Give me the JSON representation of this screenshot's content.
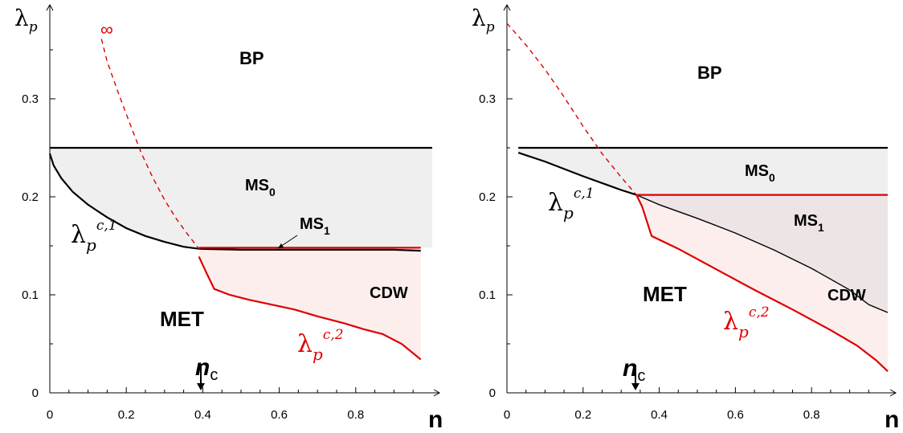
{
  "chart_data": [
    {
      "type": "area",
      "panel": "left",
      "xlabel": "n",
      "ylabel_symbol": "λ",
      "ylabel_sub": "p",
      "xlim": [
        0,
        1.0
      ],
      "ylim": [
        0,
        0.4
      ],
      "x_ticks": [
        0,
        0.2,
        0.4,
        0.6,
        0.8
      ],
      "x_tick_labels": [
        "0",
        "0.2",
        "0.4",
        "0.6",
        "0.8"
      ],
      "y_ticks": [
        0,
        0.1,
        0.2,
        0.3
      ],
      "y_tick_labels": [
        "0",
        "0.1",
        "0.2",
        "0.3"
      ],
      "grid": false,
      "series": [
        {
          "name": "top boundary",
          "color": "#000000",
          "style": "solid",
          "x": [
            0,
            1.0
          ],
          "y": [
            0.25,
            0.25
          ]
        },
        {
          "name": "λp c,1",
          "color": "#000000",
          "style": "solid",
          "x": [
            0,
            0.01,
            0.03,
            0.06,
            0.1,
            0.15,
            0.2,
            0.25,
            0.3,
            0.35,
            0.39
          ],
          "y": [
            0.244,
            0.232,
            0.219,
            0.205,
            0.192,
            0.179,
            0.168,
            0.16,
            0.154,
            0.149,
            0.147
          ]
        },
        {
          "name": "MS1 lower",
          "color": "#000000",
          "style": "solid",
          "x": [
            0.39,
            0.5,
            0.6,
            0.7,
            0.8,
            0.9,
            0.97
          ],
          "y": [
            0.147,
            0.146,
            0.146,
            0.146,
            0.146,
            0.146,
            0.145
          ]
        },
        {
          "name": "MS0/MS1",
          "color": "#dd0000",
          "style": "solid",
          "x": [
            0.39,
            0.97
          ],
          "y": [
            0.148,
            0.148
          ]
        },
        {
          "name": "λp c,2",
          "color": "#dd0000",
          "style": "solid",
          "x": [
            0.39,
            0.41,
            0.43,
            0.47,
            0.52,
            0.58,
            0.64,
            0.7,
            0.77,
            0.82,
            0.87,
            0.92,
            0.97
          ],
          "y": [
            0.139,
            0.122,
            0.106,
            0.1,
            0.095,
            0.09,
            0.085,
            0.078,
            0.071,
            0.065,
            0.06,
            0.05,
            0.034
          ]
        },
        {
          "name": "dashed",
          "color": "#dd0000",
          "style": "dashed",
          "x": [
            0.135,
            0.15,
            0.18,
            0.21,
            0.24,
            0.27,
            0.3,
            0.33,
            0.36,
            0.39
          ],
          "y": [
            0.361,
            0.338,
            0.305,
            0.274,
            0.244,
            0.219,
            0.197,
            0.178,
            0.162,
            0.147
          ]
        }
      ],
      "fill_ms0_color": "#efefef",
      "fill_cdw_color": "#fdeeee",
      "labels": {
        "bp": "BP",
        "ms0": "MS",
        "ms0_sub": "0",
        "ms1": "MS",
        "ms1_sub": "1",
        "cdw": "CDW",
        "met": "MET",
        "infinity": "∞",
        "lam1": "λ",
        "lam1_sub": "p",
        "lam1_sup": "c,1",
        "lam2": "λ",
        "lam2_sub": "p",
        "lam2_sup": "c,2",
        "nc": "n",
        "nc_sub": "c",
        "nc_arrow": "↓"
      },
      "nc_value": 0.39
    },
    {
      "type": "area",
      "panel": "right",
      "xlabel": "n",
      "ylabel_symbol": "λ",
      "ylabel_sub": "p",
      "xlim": [
        0,
        1.0
      ],
      "ylim": [
        0,
        0.4
      ],
      "x_ticks": [
        0,
        0.2,
        0.4,
        0.6,
        0.8
      ],
      "x_tick_labels": [
        "0",
        "0.2",
        "0.4",
        "0.6",
        "0.8"
      ],
      "y_ticks": [
        0,
        0.1,
        0.2,
        0.3
      ],
      "y_tick_labels": [
        "0",
        "0.1",
        "0.2",
        "0.3"
      ],
      "grid": false,
      "series": [
        {
          "name": "top boundary",
          "color": "#000000",
          "style": "solid",
          "x": [
            0.03,
            1.0
          ],
          "y": [
            0.25,
            0.25
          ]
        },
        {
          "name": "λp c,1",
          "color": "#000000",
          "style": "solid",
          "x": [
            0.03,
            0.1,
            0.2,
            0.3,
            0.34
          ],
          "y": [
            0.245,
            0.236,
            0.221,
            0.207,
            0.202
          ]
        },
        {
          "name": "MS1 lower",
          "color": "#000000",
          "style": "solid",
          "x": [
            0.34,
            0.4,
            0.5,
            0.6,
            0.7,
            0.8,
            0.9,
            0.95,
            1.0
          ],
          "y": [
            0.202,
            0.192,
            0.178,
            0.163,
            0.146,
            0.127,
            0.105,
            0.09,
            0.082
          ]
        },
        {
          "name": "MS0/MS1",
          "color": "#dd0000",
          "style": "solid",
          "x": [
            0.34,
            1.0
          ],
          "y": [
            0.202,
            0.202
          ]
        },
        {
          "name": "λp c,2",
          "color": "#dd0000",
          "style": "solid",
          "x": [
            0.34,
            0.355,
            0.37,
            0.38,
            0.45,
            0.55,
            0.65,
            0.75,
            0.85,
            0.92,
            0.97,
            1.0
          ],
          "y": [
            0.202,
            0.19,
            0.172,
            0.16,
            0.147,
            0.126,
            0.105,
            0.085,
            0.064,
            0.048,
            0.033,
            0.022
          ]
        },
        {
          "name": "dashed",
          "color": "#dd0000",
          "style": "dashed",
          "x": [
            0.0,
            0.05,
            0.1,
            0.15,
            0.2,
            0.25,
            0.3,
            0.34
          ],
          "y": [
            0.377,
            0.355,
            0.33,
            0.302,
            0.272,
            0.244,
            0.22,
            0.202
          ]
        }
      ],
      "fill_ms0_color": "#efefef",
      "fill_ms1_color": "#ede5e5",
      "fill_cdw_color": "#fdeeee",
      "labels": {
        "bp": "BP",
        "ms0": "MS",
        "ms0_sub": "0",
        "ms1": "MS",
        "ms1_sub": "1",
        "cdw": "CDW",
        "met": "MET",
        "lam1": "λ",
        "lam1_sub": "p",
        "lam1_sup": "c,1",
        "lam2": "λ",
        "lam2_sub": "p",
        "lam2_sup": "c,2",
        "nc": "n",
        "nc_sub": "c",
        "nc_arrow": "↓"
      },
      "nc_value": 0.33
    }
  ]
}
